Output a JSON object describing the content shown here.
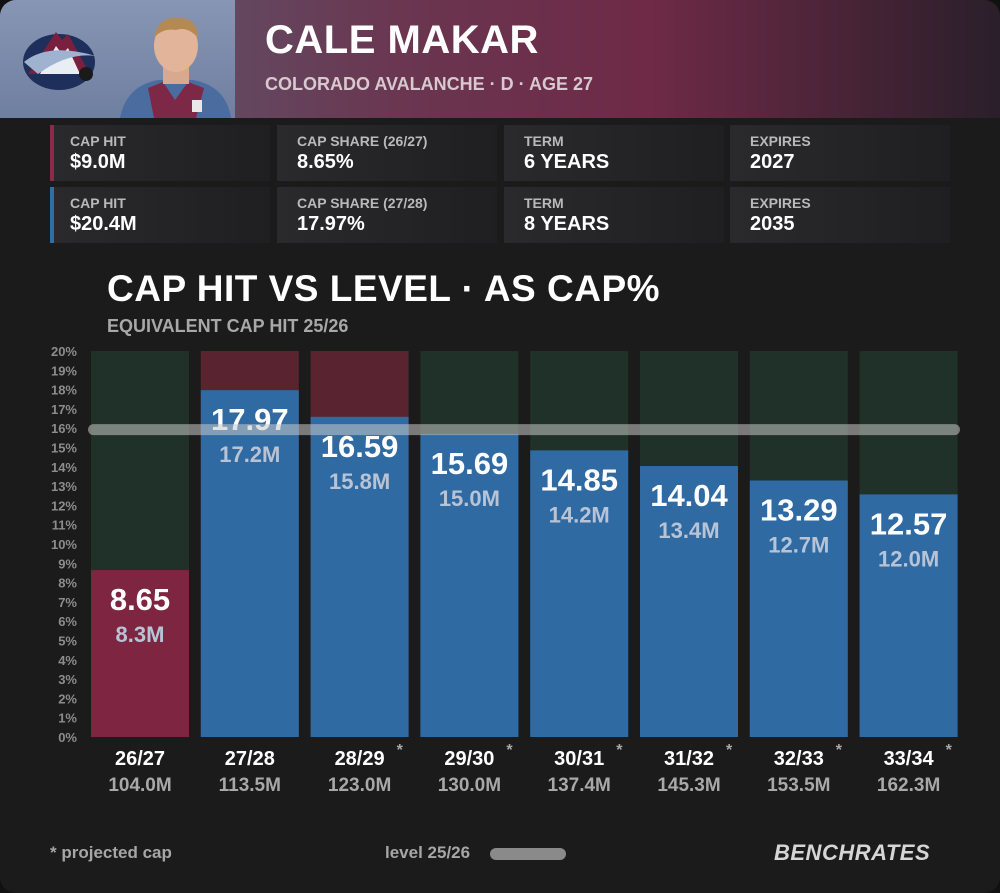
{
  "player": {
    "name": "CALE MAKAR",
    "subtitle": "COLORADO AVALANCHE · D · AGE 27"
  },
  "contracts": [
    {
      "accent": "#8b2b4a",
      "stats": [
        {
          "label": "CAP HIT",
          "value": "$9.0M"
        },
        {
          "label": "CAP SHARE (26/27)",
          "value": "8.65%"
        },
        {
          "label": "TERM",
          "value": "6 YEARS"
        },
        {
          "label": "EXPIRES",
          "value": "2027"
        }
      ]
    },
    {
      "accent": "#2f6fa8",
      "stats": [
        {
          "label": "CAP HIT",
          "value": "$20.4M"
        },
        {
          "label": "CAP SHARE (27/28)",
          "value": "17.97%"
        },
        {
          "label": "TERM",
          "value": "8 YEARS"
        },
        {
          "label": "EXPIRES",
          "value": "2035"
        }
      ]
    }
  ],
  "chart_data": {
    "type": "bar",
    "title": "CAP HIT VS LEVEL · AS CAP%",
    "subtitle": "EQUIVALENT CAP HIT 25/26",
    "ylim": [
      0,
      20
    ],
    "y_ticks": [
      "0%",
      "1%",
      "2%",
      "3%",
      "4%",
      "5%",
      "6%",
      "7%",
      "8%",
      "9%",
      "10%",
      "11%",
      "12%",
      "13%",
      "14%",
      "15%",
      "16%",
      "17%",
      "18%",
      "19%",
      "20%"
    ],
    "level_value": 15.9,
    "categories": [
      "26/27",
      "27/28",
      "28/29",
      "29/30",
      "30/31",
      "31/32",
      "32/33",
      "33/34"
    ],
    "projected": [
      false,
      false,
      true,
      true,
      true,
      true,
      true,
      true
    ],
    "cap_totals": [
      "104.0M",
      "113.5M",
      "123.0M",
      "130.0M",
      "137.4M",
      "145.3M",
      "153.5M",
      "162.3M"
    ],
    "values": [
      8.65,
      17.97,
      16.59,
      15.69,
      14.85,
      14.04,
      13.29,
      12.57
    ],
    "value_labels": [
      "8.65",
      "17.97",
      "16.59",
      "15.69",
      "14.85",
      "14.04",
      "13.29",
      "12.57"
    ],
    "equivalent_labels": [
      "8.3M",
      "17.2M",
      "15.8M",
      "15.0M",
      "14.2M",
      "13.4M",
      "12.7M",
      "12.0M"
    ],
    "bar_colors": [
      "#7d2541",
      "#2f6aa3",
      "#2f6aa3",
      "#2f6aa3",
      "#2f6aa3",
      "#2f6aa3",
      "#2f6aa3",
      "#2f6aa3"
    ],
    "background_colors": [
      "#1f3128",
      "#5a2330",
      "#5a2330",
      "#1f3128",
      "#1f3128",
      "#1f3128",
      "#1f3128",
      "#1f3128"
    ]
  },
  "footer": {
    "projected_note": "* projected cap",
    "level_label": "level 25/26",
    "brand": "BENCHRATES"
  }
}
